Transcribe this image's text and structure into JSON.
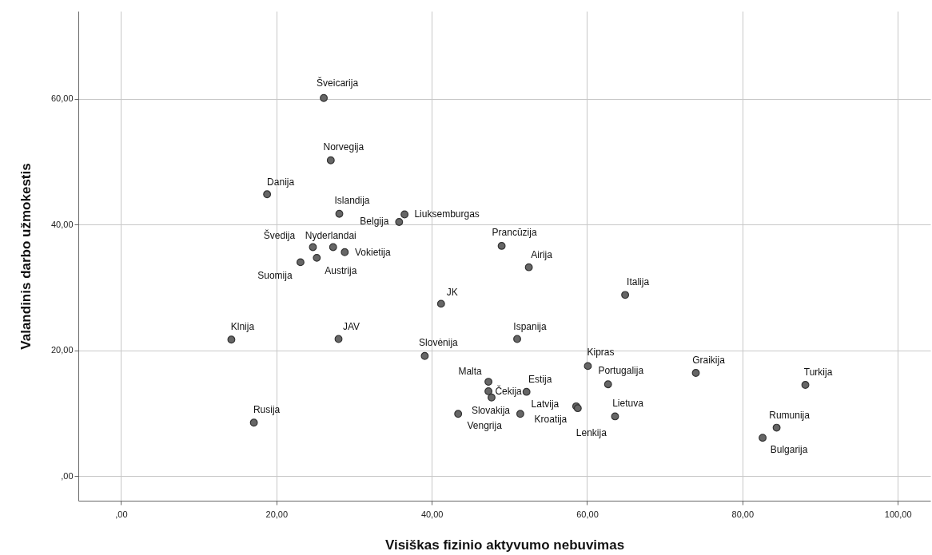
{
  "chart_data": {
    "type": "scatter",
    "xlabel": "Visiškas fizinio aktyvumo nebuvimas",
    "ylabel": "Valandinis darbo užmokestis",
    "x": [
      26.1,
      27.0,
      18.8,
      28.1,
      36.5,
      35.8,
      24.7,
      27.3,
      28.8,
      25.2,
      23.1,
      49.0,
      52.5,
      41.2,
      14.2,
      28.0,
      39.1,
      51.0,
      17.1,
      47.3,
      47.3,
      47.7,
      43.4,
      52.2,
      51.4,
      58.6,
      58.8,
      60.1,
      62.7,
      63.6,
      64.9,
      74.0,
      88.1,
      84.4,
      82.6
    ],
    "series": [
      {
        "color": "#666666",
        "values": [
          60.1,
          50.2,
          44.8,
          41.7,
          41.6,
          40.4,
          36.4,
          36.4,
          35.6,
          34.7,
          34.0,
          36.6,
          33.2,
          27.4,
          21.7,
          21.8,
          19.1,
          21.8,
          8.5,
          15.0,
          13.5,
          12.5,
          9.9,
          13.4,
          9.9,
          11.1,
          10.8,
          17.5,
          14.6,
          9.5,
          28.8,
          16.4,
          14.5,
          7.7,
          6.1
        ]
      }
    ],
    "annotations": [
      {
        "text": "Šveicarija",
        "x": 26.1,
        "y": 60.1
      },
      {
        "text": "Norvegija",
        "x": 27.0,
        "y": 50.2
      },
      {
        "text": "Danija",
        "x": 18.8,
        "y": 44.8
      },
      {
        "text": "Islandija",
        "x": 28.1,
        "y": 41.7
      },
      {
        "text": "Liuksemburgas",
        "x": 36.5,
        "y": 41.6
      },
      {
        "text": "Belgija",
        "x": 35.8,
        "y": 40.4
      },
      {
        "text": "Švedija",
        "x": 24.7,
        "y": 36.4
      },
      {
        "text": "Nyderlandai",
        "x": 27.3,
        "y": 36.4
      },
      {
        "text": "Vokietija",
        "x": 28.8,
        "y": 35.6
      },
      {
        "text": "Austrija",
        "x": 25.2,
        "y": 34.7
      },
      {
        "text": "Suomija",
        "x": 23.1,
        "y": 34.0
      },
      {
        "text": "Prancūzija",
        "x": 49.0,
        "y": 36.6
      },
      {
        "text": "Airija",
        "x": 52.5,
        "y": 33.2
      },
      {
        "text": "JK",
        "x": 41.2,
        "y": 27.4
      },
      {
        "text": "Klnija",
        "x": 14.2,
        "y": 21.7
      },
      {
        "text": "JAV",
        "x": 28.0,
        "y": 21.8
      },
      {
        "text": "Slovėnija",
        "x": 39.1,
        "y": 19.1
      },
      {
        "text": "Ispanija",
        "x": 51.0,
        "y": 21.8
      },
      {
        "text": "Rusija",
        "x": 17.1,
        "y": 8.5
      },
      {
        "text": "Malta",
        "x": 47.3,
        "y": 15.0
      },
      {
        "text": "Čekija",
        "x": 47.3,
        "y": 13.5
      },
      {
        "text": "Slovakija",
        "x": 47.7,
        "y": 12.5
      },
      {
        "text": "Vengrija",
        "x": 43.4,
        "y": 9.9
      },
      {
        "text": "Estija",
        "x": 52.2,
        "y": 13.4
      },
      {
        "text": "Kroatija",
        "x": 51.4,
        "y": 9.9
      },
      {
        "text": "Latvija",
        "x": 58.6,
        "y": 11.1
      },
      {
        "text": "Lenkija",
        "x": 58.8,
        "y": 10.8
      },
      {
        "text": "Kipras",
        "x": 60.1,
        "y": 17.5
      },
      {
        "text": "Portugalija",
        "x": 62.7,
        "y": 14.6
      },
      {
        "text": "Lietuva",
        "x": 63.6,
        "y": 9.5
      },
      {
        "text": "Italija",
        "x": 64.9,
        "y": 28.8
      },
      {
        "text": "Graikija",
        "x": 74.0,
        "y": 16.4
      },
      {
        "text": "Turkija",
        "x": 88.1,
        "y": 14.5
      },
      {
        "text": "Rumunija",
        "x": 84.4,
        "y": 7.7
      },
      {
        "text": "Bulgarija",
        "x": 82.6,
        "y": 6.1
      }
    ],
    "xlim": [
      -5.5,
      104.2
    ],
    "ylim": [
      -3.9,
      73.9
    ],
    "xticks": [
      {
        "value": 0,
        "label": ",00"
      },
      {
        "value": 20,
        "label": "20,00"
      },
      {
        "value": 40,
        "label": "40,00"
      },
      {
        "value": 60,
        "label": "60,00"
      },
      {
        "value": 80,
        "label": "80,00"
      },
      {
        "value": 100,
        "label": "100,00"
      }
    ],
    "yticks": [
      {
        "value": 0,
        "label": ",00"
      },
      {
        "value": 20,
        "label": "20,00"
      },
      {
        "value": 40,
        "label": "40,00"
      },
      {
        "value": 60,
        "label": "60,00"
      }
    ],
    "grid": true,
    "marker": "circle"
  }
}
